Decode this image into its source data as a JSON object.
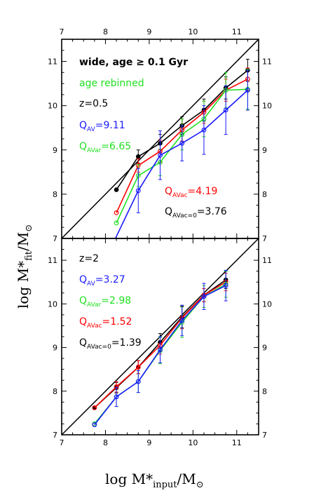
{
  "colors": {
    "black": "#000000",
    "green": "#22e022",
    "red": "#ff0000",
    "blue": "#1a1aff"
  },
  "axis_titles": {
    "x": {
      "base": "log M*",
      "sub": "input",
      "tail": "/M",
      "sun": "⊙"
    },
    "y": {
      "base": "log M*",
      "sub": "fit",
      "tail": "/M",
      "sun": "⊙"
    }
  },
  "chart_data": [
    {
      "type": "line",
      "panel": "top",
      "xlim": [
        7,
        11.5
      ],
      "ylim": [
        7,
        11.5
      ],
      "x_ticks": [
        "7",
        "8",
        "9",
        "10",
        "11"
      ],
      "y_ticks": [
        "7",
        "8",
        "9",
        "10",
        "11"
      ],
      "annotations": {
        "a1": "wide, age ≥ 0.1 Gyr",
        "a2": "age rebinned",
        "a3": "z=0.5",
        "q_av": {
          "label": "Q",
          "sub": "AV",
          "value": "=9.11"
        },
        "q_avar": {
          "label": "Q",
          "sub": "AVar",
          "value": "=6.65"
        },
        "q_avac": {
          "label": "Q",
          "sub": "AVac",
          "value": "=4.19"
        },
        "q_avac0": {
          "label": "Q",
          "sub": "AVac=0",
          "value": "=3.76"
        }
      },
      "series": [
        {
          "key": "black",
          "color": "#000000",
          "marker": "filled",
          "x": [
            8.25,
            8.75,
            9.25,
            9.75,
            10.25,
            10.75,
            11.25
          ],
          "y": [
            8.1,
            8.85,
            9.15,
            9.55,
            9.9,
            10.4,
            10.8
          ],
          "err": [
            0,
            0.15,
            0.2,
            0.2,
            0.25,
            0.25,
            0.25
          ]
        },
        {
          "key": "red",
          "color": "#ff0000",
          "marker": "open",
          "x": [
            8.25,
            8.75,
            9.25,
            9.75,
            10.25,
            10.75,
            11.25
          ],
          "y": [
            7.58,
            8.65,
            8.97,
            9.45,
            9.85,
            10.35,
            10.6
          ],
          "err": [
            0,
            0.15,
            0.25,
            0.25,
            0.25,
            0.25,
            0.25
          ]
        },
        {
          "key": "green",
          "color": "#22e022",
          "marker": "open",
          "x": [
            8.25,
            8.75,
            9.25,
            9.75,
            10.25,
            10.75,
            11.25
          ],
          "y": [
            7.35,
            8.42,
            8.72,
            9.35,
            9.7,
            10.35,
            10.37
          ],
          "err": [
            0,
            0.25,
            0.3,
            0.35,
            0.4,
            0.4,
            0.45
          ]
        },
        {
          "key": "blue",
          "color": "#1a1aff",
          "marker": "open",
          "x": [
            8.18,
            8.75,
            9.25,
            9.75,
            10.25,
            10.75,
            11.25
          ],
          "y": [
            6.9,
            8.08,
            8.88,
            9.15,
            9.45,
            9.9,
            10.35
          ],
          "err": [
            0,
            0.5,
            0.55,
            0.4,
            0.55,
            0.55,
            0.45
          ]
        }
      ]
    },
    {
      "type": "line",
      "panel": "bottom",
      "xlim": [
        7,
        11.5
      ],
      "ylim": [
        7,
        11.5
      ],
      "x_ticks": [
        "7",
        "8",
        "9",
        "10",
        "11"
      ],
      "y_ticks": [
        "7",
        "8",
        "9",
        "10",
        "11"
      ],
      "annotations": {
        "a3": "z=2",
        "q_av": {
          "label": "Q",
          "sub": "AV",
          "value": "=3.27"
        },
        "q_avar": {
          "label": "Q",
          "sub": "AVar",
          "value": "=2.98"
        },
        "q_avac": {
          "label": "Q",
          "sub": "AVac",
          "value": "=1.52"
        },
        "q_avac0": {
          "label": "Q",
          "sub": "AVac=0",
          "value": "=1.39"
        }
      },
      "series": [
        {
          "key": "black",
          "color": "#000000",
          "marker": "filled",
          "x": [
            7.75,
            8.25,
            8.75,
            9.25,
            9.75,
            10.25,
            10.75
          ],
          "y": [
            7.62,
            8.08,
            8.55,
            9.12,
            9.7,
            10.2,
            10.55
          ],
          "err": [
            0,
            0.12,
            0.15,
            0.2,
            0.25,
            0.15,
            0.2
          ]
        },
        {
          "key": "red",
          "color": "#ff0000",
          "marker": "open",
          "x": [
            7.75,
            8.25,
            8.75,
            9.25,
            9.75,
            10.25,
            10.75
          ],
          "y": [
            7.62,
            8.1,
            8.55,
            9.05,
            9.68,
            10.2,
            10.5
          ],
          "err": [
            0,
            0.12,
            0.15,
            0.2,
            0.25,
            0.15,
            0.2
          ]
        },
        {
          "key": "green",
          "color": "#22e022",
          "marker": "open",
          "x": [
            7.75,
            8.25,
            8.75,
            9.25,
            9.75,
            10.25,
            10.75
          ],
          "y": [
            7.25,
            7.87,
            8.22,
            8.93,
            9.58,
            10.17,
            10.45
          ],
          "err": [
            0,
            0.22,
            0.25,
            0.3,
            0.35,
            0.25,
            0.3
          ]
        },
        {
          "key": "blue",
          "color": "#1a1aff",
          "marker": "open",
          "x": [
            7.75,
            8.25,
            8.75,
            9.25,
            9.75,
            10.25,
            10.75
          ],
          "y": [
            7.23,
            7.87,
            8.22,
            8.95,
            9.62,
            10.17,
            10.42
          ],
          "err": [
            0,
            0.22,
            0.25,
            0.3,
            0.35,
            0.3,
            0.35
          ]
        }
      ]
    }
  ]
}
